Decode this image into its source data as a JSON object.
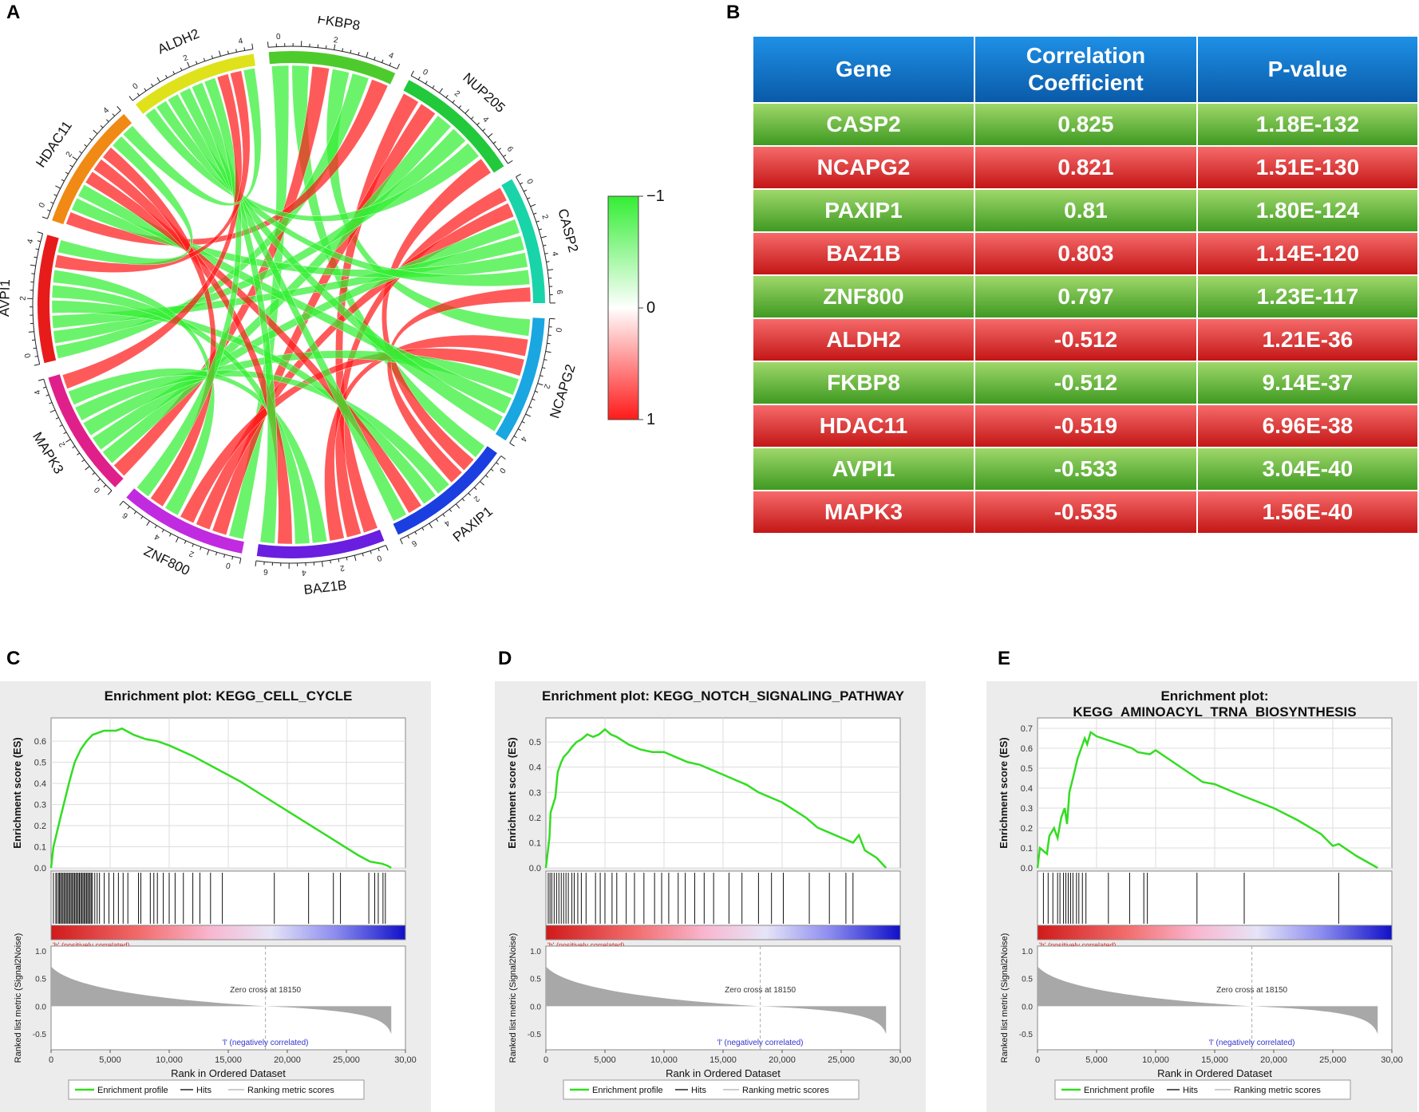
{
  "panels": {
    "a": "A",
    "b": "B",
    "c": "C",
    "d": "D",
    "e": "E"
  },
  "chord": {
    "colors": {
      "positive": "#ff1a1a",
      "negative": "#33ee33"
    },
    "legend": {
      "top": "−1",
      "middle": "0",
      "bottom": "1"
    },
    "sectors": [
      {
        "name": "FKBP8",
        "color": "#4ecb2c",
        "ticks": [
          "0",
          "2",
          "4"
        ]
      },
      {
        "name": "NUP205",
        "color": "#22c93a",
        "ticks": [
          "0",
          "2",
          "4",
          "6"
        ]
      },
      {
        "name": "CASP2",
        "color": "#19d4a8",
        "ticks": [
          "0",
          "2",
          "4",
          "6"
        ]
      },
      {
        "name": "NCAPG2",
        "color": "#1aa6e0",
        "ticks": [
          "0",
          "2",
          "4"
        ]
      },
      {
        "name": "PAXIP1",
        "color": "#1b3ee0",
        "ticks": [
          "0",
          "2",
          "4",
          "6"
        ]
      },
      {
        "name": "BAZ1B",
        "color": "#6a1ee0",
        "ticks": [
          "0",
          "2",
          "4",
          "6"
        ]
      },
      {
        "name": "ZNF800",
        "color": "#c12be0",
        "ticks": [
          "0",
          "2",
          "4",
          "6"
        ]
      },
      {
        "name": "MAPK3",
        "color": "#e0208a",
        "ticks": [
          "0",
          "2",
          "4"
        ]
      },
      {
        "name": "AVPI1",
        "color": "#e81b1b",
        "ticks": [
          "0",
          "2",
          "4"
        ]
      },
      {
        "name": "HDAC11",
        "color": "#f08a14",
        "ticks": [
          "0",
          "2",
          "4"
        ]
      },
      {
        "name": "ALDH2",
        "color": "#dfe21a",
        "ticks": [
          "0",
          "2",
          "4"
        ]
      }
    ]
  },
  "table": {
    "headers": [
      "Gene",
      "Correlation Coefficient",
      "P-value"
    ],
    "rows": [
      {
        "gene": "CASP2",
        "coef": "0.825",
        "p": "1.18E-132",
        "style": "green"
      },
      {
        "gene": "NCAPG2",
        "coef": "0.821",
        "p": "1.51E-130",
        "style": "red"
      },
      {
        "gene": "PAXIP1",
        "coef": "0.81",
        "p": "1.80E-124",
        "style": "green"
      },
      {
        "gene": "BAZ1B",
        "coef": "0.803",
        "p": "1.14E-120",
        "style": "red"
      },
      {
        "gene": "ZNF800",
        "coef": "0.797",
        "p": "1.23E-117",
        "style": "green"
      },
      {
        "gene": "ALDH2",
        "coef": "-0.512",
        "p": "1.21E-36",
        "style": "red"
      },
      {
        "gene": "FKBP8",
        "coef": "-0.512",
        "p": "9.14E-37",
        "style": "green"
      },
      {
        "gene": "HDAC11",
        "coef": "-0.519",
        "p": "6.96E-38",
        "style": "red"
      },
      {
        "gene": "AVPI1",
        "coef": "-0.533",
        "p": "3.04E-40",
        "style": "green"
      },
      {
        "gene": "MAPK3",
        "coef": "-0.535",
        "p": "1.56E-40",
        "style": "red"
      }
    ]
  },
  "chart_data": [
    {
      "type": "line",
      "panel": "C",
      "title": [
        "Enrichment plot: KEGG_CELL_CYCLE"
      ],
      "ylabel": "Enrichment score (ES)",
      "yticks": [
        "0.0",
        "0.1",
        "0.2",
        "0.3",
        "0.4",
        "0.5",
        "0.6"
      ],
      "ylim": [
        0,
        0.68
      ],
      "x": [
        0,
        200,
        500,
        800,
        1200,
        1600,
        2000,
        2500,
        3000,
        3500,
        4000,
        4500,
        5000,
        5500,
        6000,
        7000,
        8000,
        9000,
        10000,
        12000,
        14000,
        16000,
        18000,
        20000,
        22000,
        24000,
        26000,
        27000,
        28000,
        28500,
        28800
      ],
      "es": [
        0.0,
        0.1,
        0.17,
        0.24,
        0.33,
        0.42,
        0.5,
        0.56,
        0.6,
        0.63,
        0.64,
        0.65,
        0.65,
        0.65,
        0.66,
        0.63,
        0.61,
        0.6,
        0.58,
        0.53,
        0.47,
        0.41,
        0.34,
        0.27,
        0.2,
        0.13,
        0.06,
        0.03,
        0.02,
        0.01,
        0.0
      ],
      "hits": [
        200,
        400,
        500,
        650,
        700,
        800,
        900,
        1000,
        1100,
        1200,
        1300,
        1400,
        1500,
        1600,
        1700,
        1800,
        1900,
        2000,
        2100,
        2200,
        2300,
        2400,
        2500,
        2600,
        2700,
        2800,
        2900,
        3000,
        3100,
        3200,
        3300,
        3400,
        3500,
        3700,
        3900,
        4100,
        4500,
        4900,
        5300,
        5700,
        6100,
        6500,
        7400,
        7600,
        8400,
        8700,
        9000,
        9500,
        10000,
        10500,
        11200,
        12000,
        12600,
        13500,
        14500,
        18900,
        21800,
        23900,
        24500,
        26900,
        27400,
        27700,
        28100,
        28300
      ],
      "metric_ylabel": "Ranked list metric (Signal2Noise)",
      "metric_yticks": [
        "-0.5",
        "0.0",
        "0.5",
        "1.0"
      ],
      "zero_cross": "Zero cross at 18150",
      "pos_label": "'h' (positively correlated)",
      "neg_label": "'l' (negatively correlated)",
      "xlabel": "Rank in Ordered Dataset",
      "xticks": [
        "0",
        "5,000",
        "10,000",
        "15,000",
        "20,000",
        "25,000",
        "30,00"
      ],
      "legend": [
        "Enrichment profile",
        "Hits",
        "Ranking metric scores"
      ]
    },
    {
      "type": "line",
      "panel": "D",
      "title": [
        "Enrichment plot: KEGG_NOTCH_SIGNALING_PATHWAY"
      ],
      "ylabel": "Enrichment score (ES)",
      "yticks": [
        "0.0",
        "0.1",
        "0.2",
        "0.3",
        "0.4",
        "0.5"
      ],
      "ylim": [
        0,
        0.57
      ],
      "x": [
        0,
        300,
        400,
        800,
        1000,
        1300,
        1500,
        1900,
        2200,
        2600,
        3000,
        3500,
        4000,
        4500,
        5000,
        5500,
        6000,
        7000,
        8000,
        9000,
        10000,
        11000,
        12000,
        13000,
        14000,
        15000,
        16000,
        17000,
        18000,
        20000,
        22000,
        23000,
        24000,
        25000,
        26000,
        26500,
        27000,
        28000,
        28800
      ],
      "es": [
        0.0,
        0.12,
        0.22,
        0.28,
        0.38,
        0.42,
        0.44,
        0.46,
        0.48,
        0.5,
        0.51,
        0.53,
        0.52,
        0.53,
        0.55,
        0.53,
        0.52,
        0.49,
        0.47,
        0.46,
        0.46,
        0.44,
        0.42,
        0.41,
        0.39,
        0.37,
        0.35,
        0.33,
        0.3,
        0.26,
        0.2,
        0.16,
        0.14,
        0.12,
        0.1,
        0.13,
        0.07,
        0.04,
        0.0
      ],
      "hits": [
        200,
        350,
        500,
        700,
        900,
        1100,
        1300,
        1500,
        1700,
        1900,
        2200,
        2400,
        2700,
        3000,
        3400,
        4200,
        4600,
        5000,
        5600,
        6000,
        6800,
        7500,
        8300,
        9200,
        9800,
        10400,
        11200,
        11800,
        12600,
        13400,
        14200,
        15500,
        16600,
        18000,
        19100,
        20100,
        22300,
        24000,
        25400,
        26000
      ],
      "metric_ylabel": "Ranked list metric (Signal2Noise)",
      "metric_yticks": [
        "-0.5",
        "0.0",
        "0.5",
        "1.0"
      ],
      "zero_cross": "Zero cross at 18150",
      "pos_label": "'h' (positively correlated)",
      "neg_label": "'l' (negatively correlated)",
      "xlabel": "Rank in Ordered Dataset",
      "xticks": [
        "0",
        "5,000",
        "10,000",
        "15,000",
        "20,000",
        "25,000",
        "30,00"
      ],
      "legend": [
        "Enrichment profile",
        "Hits",
        "Ranking metric scores"
      ]
    },
    {
      "type": "line",
      "panel": "E",
      "title": [
        "Enrichment plot:",
        "KEGG_AMINOACYL_TRNA_BIOSYNTHESIS"
      ],
      "ylabel": "Enrichment score (ES)",
      "yticks": [
        "0.0",
        "0.1",
        "0.2",
        "0.3",
        "0.4",
        "0.5",
        "0.6",
        "0.7"
      ],
      "ylim": [
        0,
        0.72
      ],
      "x": [
        0,
        200,
        800,
        1000,
        1400,
        1700,
        2000,
        2300,
        2500,
        2700,
        3000,
        3200,
        3400,
        3700,
        4000,
        4200,
        4500,
        5000,
        6000,
        7000,
        8000,
        8500,
        9500,
        10000,
        11000,
        13000,
        14000,
        15000,
        17000,
        20000,
        22000,
        24000,
        25000,
        25500,
        27000,
        28800
      ],
      "es": [
        0.0,
        0.1,
        0.07,
        0.16,
        0.2,
        0.15,
        0.25,
        0.3,
        0.22,
        0.38,
        0.45,
        0.5,
        0.55,
        0.6,
        0.65,
        0.62,
        0.68,
        0.66,
        0.64,
        0.62,
        0.6,
        0.58,
        0.57,
        0.59,
        0.55,
        0.47,
        0.43,
        0.42,
        0.37,
        0.3,
        0.24,
        0.17,
        0.11,
        0.12,
        0.06,
        0.0
      ],
      "hits": [
        500,
        900,
        1300,
        1700,
        1900,
        2200,
        2400,
        2600,
        2800,
        3000,
        3300,
        3500,
        3800,
        4100,
        6000,
        7800,
        9000,
        9300,
        13500,
        17500,
        25500
      ],
      "metric_ylabel": "Ranked list metric (Signal2Noise)",
      "metric_yticks": [
        "-0.5",
        "0.0",
        "0.5",
        "1.0"
      ],
      "zero_cross": "Zero cross at 18150",
      "pos_label": "'h' (positively correlated)",
      "neg_label": "'l' (negatively correlated)",
      "xlabel": "Rank in Ordered Dataset",
      "xticks": [
        "0",
        "5,000",
        "10,000",
        "15,000",
        "20,000",
        "25,000",
        "30,00"
      ],
      "legend": [
        "Enrichment profile",
        "Hits",
        "Ranking metric scores"
      ]
    }
  ]
}
